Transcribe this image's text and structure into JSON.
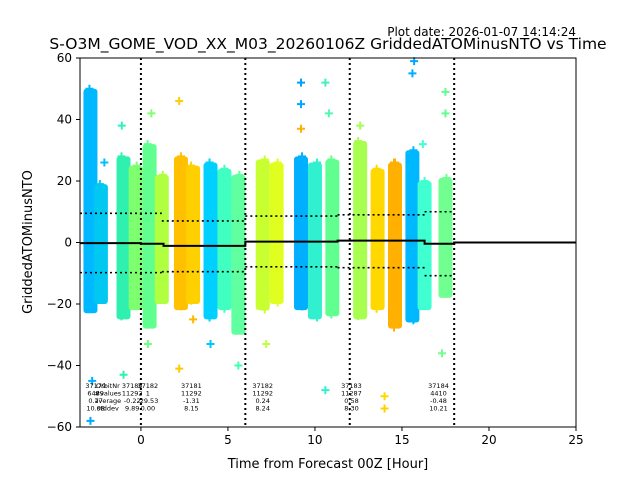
{
  "chart_data": {
    "type": "scatter",
    "title": "S-O3M_GOME_VOD_XX_M03_20260106Z GriddedATOMinusNTO vs Time",
    "plot_date": "Plot date: 2026-01-07 14:14:24",
    "xlabel": "Time from Forecast 00Z [Hour]",
    "ylabel": "GriddedATOMinusNTO",
    "xlim": [
      -3.5,
      25
    ],
    "ylim": [
      -60,
      60
    ],
    "xticks": [
      0,
      5,
      10,
      15,
      20,
      25
    ],
    "yticks": [
      -60,
      -40,
      -20,
      0,
      20,
      40,
      60
    ],
    "grid": false,
    "window_boundaries": [
      0,
      6,
      12,
      18
    ],
    "stats_labels": [
      "OrbitNr",
      "#values",
      "average",
      "stddev"
    ],
    "orbits": [
      {
        "orbit": "37179",
        "values": "6489",
        "average": "0.77",
        "stddev": "10.08"
      },
      {
        "orbit": "37180",
        "values": "11292",
        "average": "-0.22",
        "stddev": "9.89"
      },
      {
        "orbit": "37182",
        "values": "1",
        "average": "-29.53",
        "stddev": "0.00"
      },
      {
        "orbit": "37181",
        "values": "11292",
        "average": "-1.31",
        "stddev": "8.15"
      },
      {
        "orbit": "37182",
        "values": "11292",
        "average": "0.24",
        "stddev": "8.24"
      },
      {
        "orbit": "37183",
        "values": "11287",
        "average": "0.58",
        "stddev": "8.30"
      },
      {
        "orbit": "37184",
        "values": "4410",
        "average": "-0.48",
        "stddev": "10.21"
      }
    ],
    "mean_line": [
      {
        "x0": -3.5,
        "x1": 0,
        "y": -0.2
      },
      {
        "x0": 0,
        "x1": 1.3,
        "y": -0.4
      },
      {
        "x0": 1.3,
        "x1": 6,
        "y": -1.1
      },
      {
        "x0": 6,
        "x1": 11.3,
        "y": 0.3
      },
      {
        "x0": 11.3,
        "x1": 16.3,
        "y": 0.6
      },
      {
        "x0": 16.3,
        "x1": 18,
        "y": -0.4
      },
      {
        "x0": 18,
        "x1": 25,
        "y": 0
      }
    ],
    "stddev_upper": [
      {
        "x0": -3.5,
        "x1": 1.2,
        "y": 9.5
      },
      {
        "x0": 1.2,
        "x1": 6,
        "y": 7
      },
      {
        "x0": 6,
        "x1": 11.3,
        "y": 8.6
      },
      {
        "x0": 11.3,
        "x1": 16.3,
        "y": 9
      },
      {
        "x0": 16.3,
        "x1": 18,
        "y": 10
      }
    ],
    "stddev_lower": [
      {
        "x0": -3.5,
        "x1": 1.2,
        "y": -9.8
      },
      {
        "x0": 1.2,
        "x1": 6,
        "y": -9.5
      },
      {
        "x0": 6,
        "x1": 11.3,
        "y": -7.9
      },
      {
        "x0": 11.3,
        "x1": 16.3,
        "y": -8.2
      },
      {
        "x0": 16.3,
        "x1": 18,
        "y": -10.8
      }
    ],
    "series": [
      {
        "x": -2.9,
        "low": -23,
        "high": 50,
        "color": "#00b8ff"
      },
      {
        "x": -2.3,
        "low": -20,
        "high": 19,
        "color": "#00c8f0"
      },
      {
        "x": -1.0,
        "low": -25,
        "high": 28,
        "color": "#30f0b0"
      },
      {
        "x": -0.3,
        "low": -22,
        "high": 25,
        "color": "#7dff70"
      },
      {
        "x": 0.5,
        "low": -28,
        "high": 32,
        "color": "#60ff90"
      },
      {
        "x": 1.2,
        "low": -20,
        "high": 22,
        "color": "#b0ff40"
      },
      {
        "x": 2.3,
        "low": -22,
        "high": 28,
        "color": "#ffc000"
      },
      {
        "x": 3.0,
        "low": -20,
        "high": 25,
        "color": "#ffd000"
      },
      {
        "x": 4.0,
        "low": -25,
        "high": 26,
        "color": "#00d0ff"
      },
      {
        "x": 4.8,
        "low": -22,
        "high": 24,
        "color": "#40ffc0"
      },
      {
        "x": 5.6,
        "low": -30,
        "high": 22,
        "color": "#60ffa0"
      },
      {
        "x": 7.0,
        "low": -22,
        "high": 27,
        "color": "#c8ff30"
      },
      {
        "x": 7.8,
        "low": -20,
        "high": 26,
        "color": "#e0ff20"
      },
      {
        "x": 9.2,
        "low": -22,
        "high": 28,
        "color": "#00b0ff"
      },
      {
        "x": 10.0,
        "low": -25,
        "high": 26,
        "color": "#30f0d0"
      },
      {
        "x": 11.0,
        "low": -24,
        "high": 27,
        "color": "#60ff90"
      },
      {
        "x": 12.6,
        "low": -25,
        "high": 33,
        "color": "#a8ff50"
      },
      {
        "x": 13.6,
        "low": -22,
        "high": 24,
        "color": "#ffd800"
      },
      {
        "x": 14.6,
        "low": -28,
        "high": 26,
        "color": "#ffb000"
      },
      {
        "x": 15.6,
        "low": -26,
        "high": 30,
        "color": "#00b8ff"
      },
      {
        "x": 16.3,
        "low": -22,
        "high": 20,
        "color": "#40ffd0"
      },
      {
        "x": 17.5,
        "low": -18,
        "high": 21,
        "color": "#70ff90"
      }
    ],
    "outliers": [
      {
        "x": -2.9,
        "y": -58,
        "color": "#00a8ff"
      },
      {
        "x": -2.8,
        "y": -45,
        "color": "#00b0ff"
      },
      {
        "x": -2.1,
        "y": 26,
        "color": "#00c0ff"
      },
      {
        "x": -1.1,
        "y": 38,
        "color": "#30f0c0"
      },
      {
        "x": -1.0,
        "y": -43,
        "color": "#30f0b0"
      },
      {
        "x": 0.6,
        "y": 42,
        "color": "#80ff70"
      },
      {
        "x": 0.4,
        "y": -33,
        "color": "#70ff80"
      },
      {
        "x": 2.2,
        "y": 46,
        "color": "#ffd000"
      },
      {
        "x": 2.2,
        "y": -41,
        "color": "#ffc800"
      },
      {
        "x": 3.0,
        "y": -25,
        "color": "#ffb800"
      },
      {
        "x": 4.0,
        "y": -33,
        "color": "#00c8ff"
      },
      {
        "x": 5.6,
        "y": -40,
        "color": "#40ffb0"
      },
      {
        "x": 7.2,
        "y": -33,
        "color": "#c0ff40"
      },
      {
        "x": 9.2,
        "y": 52,
        "color": "#00a0ff"
      },
      {
        "x": 9.2,
        "y": 45,
        "color": "#00a8ff"
      },
      {
        "x": 9.2,
        "y": 37,
        "color": "#ffb000"
      },
      {
        "x": 10.6,
        "y": 52,
        "color": "#40f0c0"
      },
      {
        "x": 10.8,
        "y": 42,
        "color": "#50f8b0"
      },
      {
        "x": 10.6,
        "y": -48,
        "color": "#30f0d0"
      },
      {
        "x": 12.6,
        "y": 38,
        "color": "#a0ff50"
      },
      {
        "x": 14.0,
        "y": -50,
        "color": "#ffd800"
      },
      {
        "x": 14.0,
        "y": -54,
        "color": "#ffd000"
      },
      {
        "x": 14.6,
        "y": 26,
        "color": "#ffb000"
      },
      {
        "x": 15.6,
        "y": 55,
        "color": "#00b0ff"
      },
      {
        "x": 15.7,
        "y": 59,
        "color": "#00a8ff"
      },
      {
        "x": 16.2,
        "y": 32,
        "color": "#40ffd0"
      },
      {
        "x": 17.5,
        "y": 49,
        "color": "#60ff90"
      },
      {
        "x": 17.5,
        "y": 42,
        "color": "#60ff90"
      },
      {
        "x": 17.3,
        "y": -36,
        "color": "#70ff90"
      }
    ]
  }
}
